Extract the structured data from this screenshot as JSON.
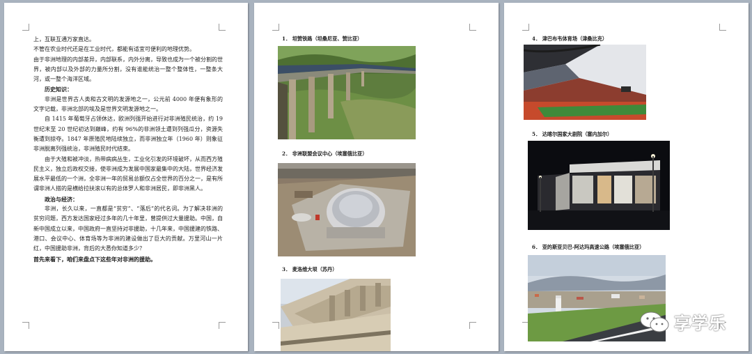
{
  "page1": {
    "paragraphs": [
      "上，互联互通万家直达。",
      "不管在农业时代还是在工业时代，都能有适宜可便利的地理优势。",
      "由于非洲地理的内部差异，内部联系，内外分离，导致也成为一个被分割的世界，被内部以及外部的力量所分割，没有谁能统治一整个整体性，一整条大河，或一整个海洋区域。",
      "历史知识：",
      "非洲是世界古人类和古文明的发源地之一，公元前 4000 年便有象形的文字记载，非洲北部的埃及是世界文明发源地之一。",
      "自 1415 年葡萄牙占领休达，欧洲列强开始进行对非洲殖民统治，约 19 世纪末至 20 世纪初达到巅峰，约有 96%的非洲领土遭到列强瓜分，资源失衡遭到掠夺。1847 年原殖民地陆续独立，而非洲独立年（1960 年）则象征非洲脱离列强统治，非洲殖民时代结束。",
      "由于大殖和被冲淡，热带病病丛生，工业化引发的环境破坏，从而西方殖民主义，独立后政权交接，使非洲成为发展中国家最集中的大陆，世界经济发展水平最低的一个洲，全非洲一年的贸易总额仅占全世界的百分之一，是有所谓非洲人搭的是横给拉扶滚以有的总体罗人和非洲居民，即非洲黑人。",
      "政治与经济：",
      "非洲，长久以来，一直都是“贫穷”、“落后”的代名词。为了解决非洲的贫穷问题，西方发达国家经过多年的几十年里，曾提供过大量援助。中国，自新中国成立以来，中国政府一直坚持对非援助，十几年来，中国援建的铁路、港口、会议中心、体育场等为非洲的建设做出了巨大的贡献。万里河山一片红，中国援助非洲，背后的大悉你知道多少？",
      "首先来看下，咱们来盘点下这些年对非洲的援助。"
    ]
  },
  "page2": {
    "captions": [
      "1． 坦赞铁路（坦桑尼亚、赞比亚）",
      "2． 非洲联盟会议中心（埃塞俄比亚）",
      "3． 麦洛维大坝（苏丹）"
    ]
  },
  "page3": {
    "captions": [
      "4． 津巴布韦体育场（津桑比克）",
      "5． 达喀尔国家大剧院（塞内加尔）",
      "6． 亚的斯亚贝巴-阿达玛高速公路（埃塞俄比亚）"
    ]
  },
  "watermark": {
    "text": "享学乐"
  }
}
